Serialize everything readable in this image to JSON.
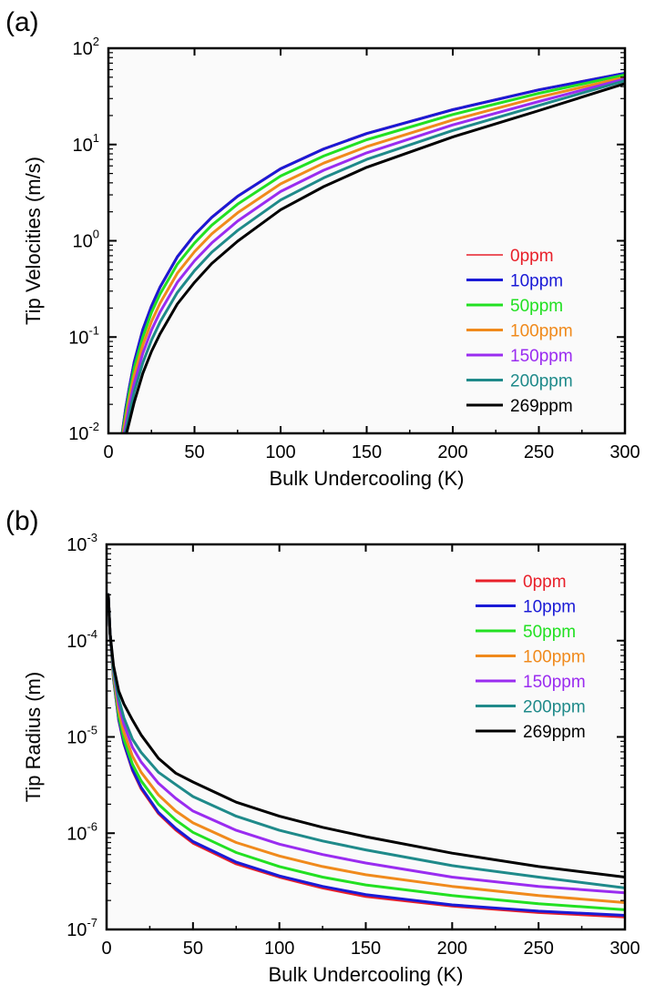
{
  "figure": {
    "panel_a_label": "(a)",
    "panel_b_label": "(b)"
  },
  "chart_data": [
    {
      "type": "line",
      "panel": "(a)",
      "xlabel": "Bulk Undercooling (K)",
      "ylabel": "Tip Velocities (m/s)",
      "xlim": [
        0,
        300
      ],
      "ylim": [
        0.01,
        100
      ],
      "yscale": "log",
      "xticks": [
        "0",
        "50",
        "100",
        "150",
        "200",
        "250",
        "300"
      ],
      "yticks": [
        {
          "value": 0.01,
          "base": "10",
          "exp": "-2"
        },
        {
          "value": 0.1,
          "base": "10",
          "exp": "-1"
        },
        {
          "value": 1,
          "base": "10",
          "exp": "0"
        },
        {
          "value": 10,
          "base": "10",
          "exp": "1"
        },
        {
          "value": 100,
          "base": "10",
          "exp": "2"
        }
      ],
      "legend_position": "right",
      "grid": false,
      "x": [
        8,
        10,
        12,
        15,
        20,
        25,
        30,
        40,
        50,
        60,
        75,
        100,
        125,
        150,
        200,
        250,
        300
      ],
      "series": [
        {
          "name": "0ppm",
          "color": "#e8202a",
          "values": [
            0.01,
            0.018,
            0.029,
            0.055,
            0.12,
            0.21,
            0.33,
            0.68,
            1.15,
            1.75,
            2.9,
            5.6,
            9.0,
            13.0,
            23.0,
            37.0,
            55.0
          ]
        },
        {
          "name": "10ppm",
          "color": "#1a1ad6",
          "values": [
            0.01,
            0.018,
            0.029,
            0.055,
            0.12,
            0.21,
            0.33,
            0.68,
            1.15,
            1.75,
            2.9,
            5.6,
            9.0,
            13.0,
            23.0,
            37.0,
            55.0
          ]
        },
        {
          "name": "50ppm",
          "color": "#22e022",
          "values": [
            0.0095,
            0.016,
            0.026,
            0.048,
            0.1,
            0.18,
            0.28,
            0.57,
            0.95,
            1.45,
            2.4,
            4.7,
            7.6,
            11.2,
            20.5,
            34.0,
            53.0
          ]
        },
        {
          "name": "100ppm",
          "color": "#f08a1c",
          "values": [
            0.0088,
            0.014,
            0.022,
            0.04,
            0.083,
            0.145,
            0.225,
            0.46,
            0.77,
            1.18,
            1.95,
            3.9,
            6.4,
            9.5,
            18.0,
            31.0,
            50.0
          ]
        },
        {
          "name": "150ppm",
          "color": "#9a2cf0",
          "values": [
            0.0082,
            0.012,
            0.019,
            0.033,
            0.068,
            0.118,
            0.182,
            0.37,
            0.62,
            0.95,
            1.6,
            3.25,
            5.4,
            8.2,
            16.0,
            28.0,
            48.0
          ]
        },
        {
          "name": "200ppm",
          "color": "#1f8a8a",
          "values": [
            0.0075,
            0.0105,
            0.0155,
            0.027,
            0.054,
            0.093,
            0.143,
            0.29,
            0.49,
            0.76,
            1.28,
            2.65,
            4.5,
            7.0,
            14.0,
            25.5,
            46.0
          ]
        },
        {
          "name": "269ppm",
          "color": "#000000",
          "values": [
            0.0068,
            0.0092,
            0.0128,
            0.021,
            0.042,
            0.071,
            0.108,
            0.22,
            0.37,
            0.58,
            0.99,
            2.1,
            3.65,
            5.8,
            12.0,
            22.5,
            43.0
          ]
        }
      ]
    },
    {
      "type": "line",
      "panel": "(b)",
      "xlabel": "Bulk Undercooling (K)",
      "ylabel": "Tip Radius (m)",
      "xlim": [
        0,
        300
      ],
      "ylim": [
        1e-07,
        0.001
      ],
      "yscale": "log",
      "xticks": [
        "0",
        "50",
        "100",
        "150",
        "200",
        "250",
        "300"
      ],
      "yticks": [
        {
          "value": 1e-07,
          "base": "10",
          "exp": "-7"
        },
        {
          "value": 1e-06,
          "base": "10",
          "exp": "-6"
        },
        {
          "value": 1e-05,
          "base": "10",
          "exp": "-5"
        },
        {
          "value": 0.0001,
          "base": "10",
          "exp": "-4"
        },
        {
          "value": 0.001,
          "base": "10",
          "exp": "-3"
        }
      ],
      "legend_position": "top-right",
      "grid": false,
      "x": [
        1,
        2,
        4,
        7,
        10,
        15,
        20,
        30,
        40,
        50,
        75,
        100,
        125,
        150,
        200,
        250,
        300
      ],
      "series": [
        {
          "name": "0ppm",
          "color": "#e8202a",
          "values": [
            0.0003,
            0.00012,
            4e-05,
            1.5e-05,
            8.5e-06,
            4.5e-06,
            2.9e-06,
            1.6e-06,
            1.08e-06,
            7.9e-07,
            4.8e-07,
            3.5e-07,
            2.7e-07,
            2.2e-07,
            1.75e-07,
            1.5e-07,
            1.35e-07
          ]
        },
        {
          "name": "10ppm",
          "color": "#1a1ad6",
          "values": [
            0.0003,
            0.00012,
            4e-05,
            1.52e-05,
            8.6e-06,
            4.6e-06,
            3e-06,
            1.65e-06,
            1.12e-06,
            8.2e-07,
            5e-07,
            3.6e-07,
            2.8e-07,
            2.3e-07,
            1.8e-07,
            1.55e-07,
            1.4e-07
          ]
        },
        {
          "name": "50ppm",
          "color": "#22e022",
          "values": [
            0.0003,
            0.00012,
            4.2e-05,
            1.65e-05,
            9.5e-06,
            5.2e-06,
            3.5e-06,
            2e-06,
            1.37e-06,
            1.02e-06,
            6.3e-07,
            4.5e-07,
            3.5e-07,
            2.9e-07,
            2.25e-07,
            1.85e-07,
            1.6e-07
          ]
        },
        {
          "name": "100ppm",
          "color": "#f08a1c",
          "values": [
            0.0003,
            0.00012,
            4.5e-05,
            1.9e-05,
            1.12e-05,
            6.3e-06,
            4.3e-06,
            2.5e-06,
            1.7e-06,
            1.28e-06,
            8e-07,
            5.8e-07,
            4.5e-07,
            3.7e-07,
            2.8e-07,
            2.25e-07,
            1.9e-07
          ]
        },
        {
          "name": "150ppm",
          "color": "#9a2cf0",
          "values": [
            0.0003,
            0.00012,
            4.8e-05,
            2.2e-05,
            1.35e-05,
            7.8e-06,
            5.5e-06,
            3.3e-06,
            2.3e-06,
            1.7e-06,
            1.07e-06,
            7.7e-07,
            6e-07,
            4.9e-07,
            3.5e-07,
            2.8e-07,
            2.4e-07
          ]
        },
        {
          "name": "200ppm",
          "color": "#1f8a8a",
          "values": [
            0.0003,
            0.00012,
            5e-05,
            2.5e-05,
            1.58e-05,
            9.5e-06,
            6.9e-06,
            4.3e-06,
            3.2e-06,
            2.4e-06,
            1.5e-06,
            1.07e-06,
            8.3e-07,
            6.7e-07,
            4.6e-07,
            3.5e-07,
            2.7e-07
          ]
        },
        {
          "name": "269ppm",
          "color": "#000000",
          "values": [
            0.0003,
            0.00012,
            5.5e-05,
            3e-05,
            2.2e-05,
            1.5e-05,
            1.05e-05,
            6e-06,
            4.2e-06,
            3.4e-06,
            2.1e-06,
            1.5e-06,
            1.15e-06,
            9.2e-07,
            6.2e-07,
            4.5e-07,
            3.5e-07
          ]
        }
      ]
    }
  ]
}
